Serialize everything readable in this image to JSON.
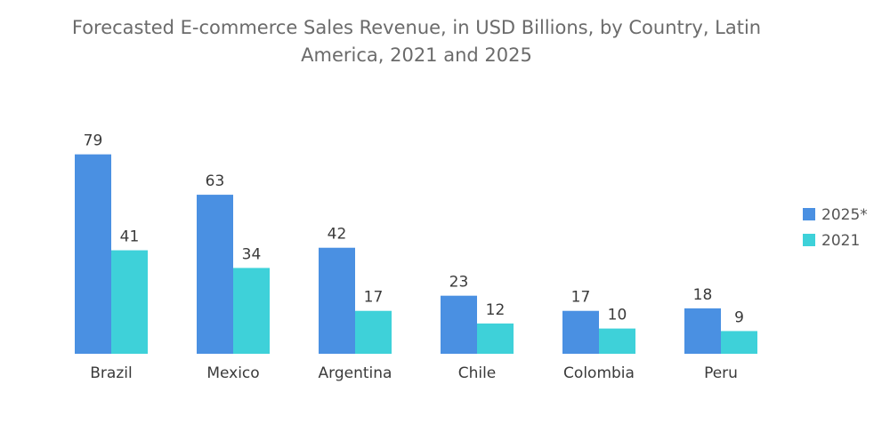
{
  "chart_data": {
    "type": "bar",
    "title": "Forecasted E-commerce Sales Revenue, in USD Billions, by Country, Latin America, 2021 and 2025",
    "title_lines": [
      "Forecasted E-commerce Sales Revenue, in USD Billions, by Country, Latin",
      "America, 2021 and 2025"
    ],
    "categories": [
      "Brazil",
      "Mexico",
      "Argentina",
      "Chile",
      "Colombia",
      "Peru"
    ],
    "series": [
      {
        "name": "2025*",
        "color": "#4a90e2",
        "values": [
          79,
          63,
          42,
          23,
          17,
          18
        ]
      },
      {
        "name": "2021",
        "color": "#3ed1d9",
        "values": [
          41,
          34,
          17,
          12,
          10,
          9
        ]
      }
    ],
    "xlabel": "",
    "ylabel": "",
    "ylim": [
      0,
      79
    ],
    "grid": false,
    "legend_position": "right",
    "data_labels": true
  }
}
